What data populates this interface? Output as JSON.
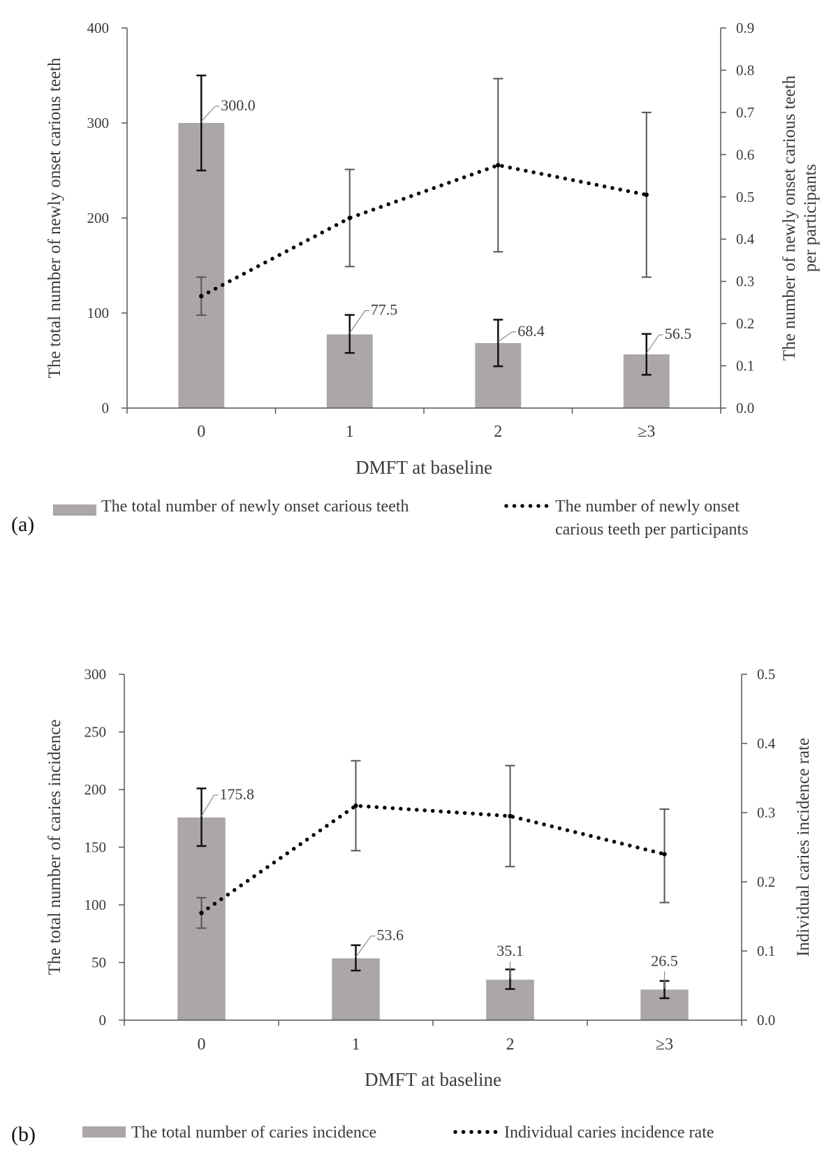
{
  "chart_data": [
    {
      "type": "bar",
      "panel_label": "(a)",
      "categories": [
        "0",
        "1",
        "2",
        "≥3"
      ],
      "xlabel": "DMFT at baseline",
      "ylabel": "The total number of newly onset carious teeth",
      "ylabel2_lines": [
        "The number of newly onset carious teeth",
        "per participants"
      ],
      "ylim": [
        0,
        400
      ],
      "yticks": [
        "0",
        "100",
        "200",
        "300",
        "400"
      ],
      "y2lim": [
        0,
        0.9
      ],
      "y2ticks": [
        "0.0",
        "0.1",
        "0.2",
        "0.3",
        "0.4",
        "0.5",
        "0.6",
        "0.7",
        "0.8",
        "0.9"
      ],
      "grid": false,
      "bar_series": {
        "name": "The total number of newly onset carious teeth",
        "values": [
          300.0,
          77.5,
          68.4,
          56.5
        ],
        "labels": [
          "300.0",
          "77.5",
          "68.4",
          "56.5"
        ],
        "err_low": [
          250,
          58,
          44,
          35
        ],
        "err_high": [
          350,
          98,
          93,
          78
        ],
        "color": "#aba7a6"
      },
      "line_series": {
        "name_lines": [
          "The number of newly onset",
          "carious teeth per participants"
        ],
        "values": [
          0.265,
          0.45,
          0.575,
          0.505
        ],
        "err_low": [
          0.22,
          0.335,
          0.37,
          0.31
        ],
        "err_high": [
          0.31,
          0.565,
          0.78,
          0.7
        ],
        "color": "#000000",
        "style": "dotted"
      }
    },
    {
      "type": "bar",
      "panel_label": "(b)",
      "categories": [
        "0",
        "1",
        "2",
        "≥3"
      ],
      "xlabel": "DMFT at baseline",
      "ylabel": "The total number of caries incidence",
      "ylabel2_lines": [
        "Individual caries incidence rate"
      ],
      "ylim": [
        0,
        300
      ],
      "yticks": [
        "0",
        "50",
        "100",
        "150",
        "200",
        "250",
        "300"
      ],
      "y2lim": [
        0,
        0.5
      ],
      "y2ticks": [
        "0.0",
        "0.1",
        "0.2",
        "0.3",
        "0.4",
        "0.5"
      ],
      "grid": false,
      "bar_series": {
        "name": "The total number of caries incidence",
        "values": [
          175.8,
          53.6,
          35.1,
          26.5
        ],
        "labels": [
          "175.8",
          "53.6",
          "35.1",
          "26.5"
        ],
        "err_low": [
          151,
          43,
          27,
          19
        ],
        "err_high": [
          201,
          65,
          44,
          34
        ],
        "color": "#aba7a6"
      },
      "line_series": {
        "name_lines": [
          "Individual caries incidence rate"
        ],
        "values": [
          0.155,
          0.31,
          0.295,
          0.24
        ],
        "err_low": [
          0.133,
          0.245,
          0.222,
          0.17
        ],
        "err_high": [
          0.177,
          0.375,
          0.368,
          0.305
        ],
        "color": "#000000",
        "style": "dotted"
      }
    }
  ]
}
